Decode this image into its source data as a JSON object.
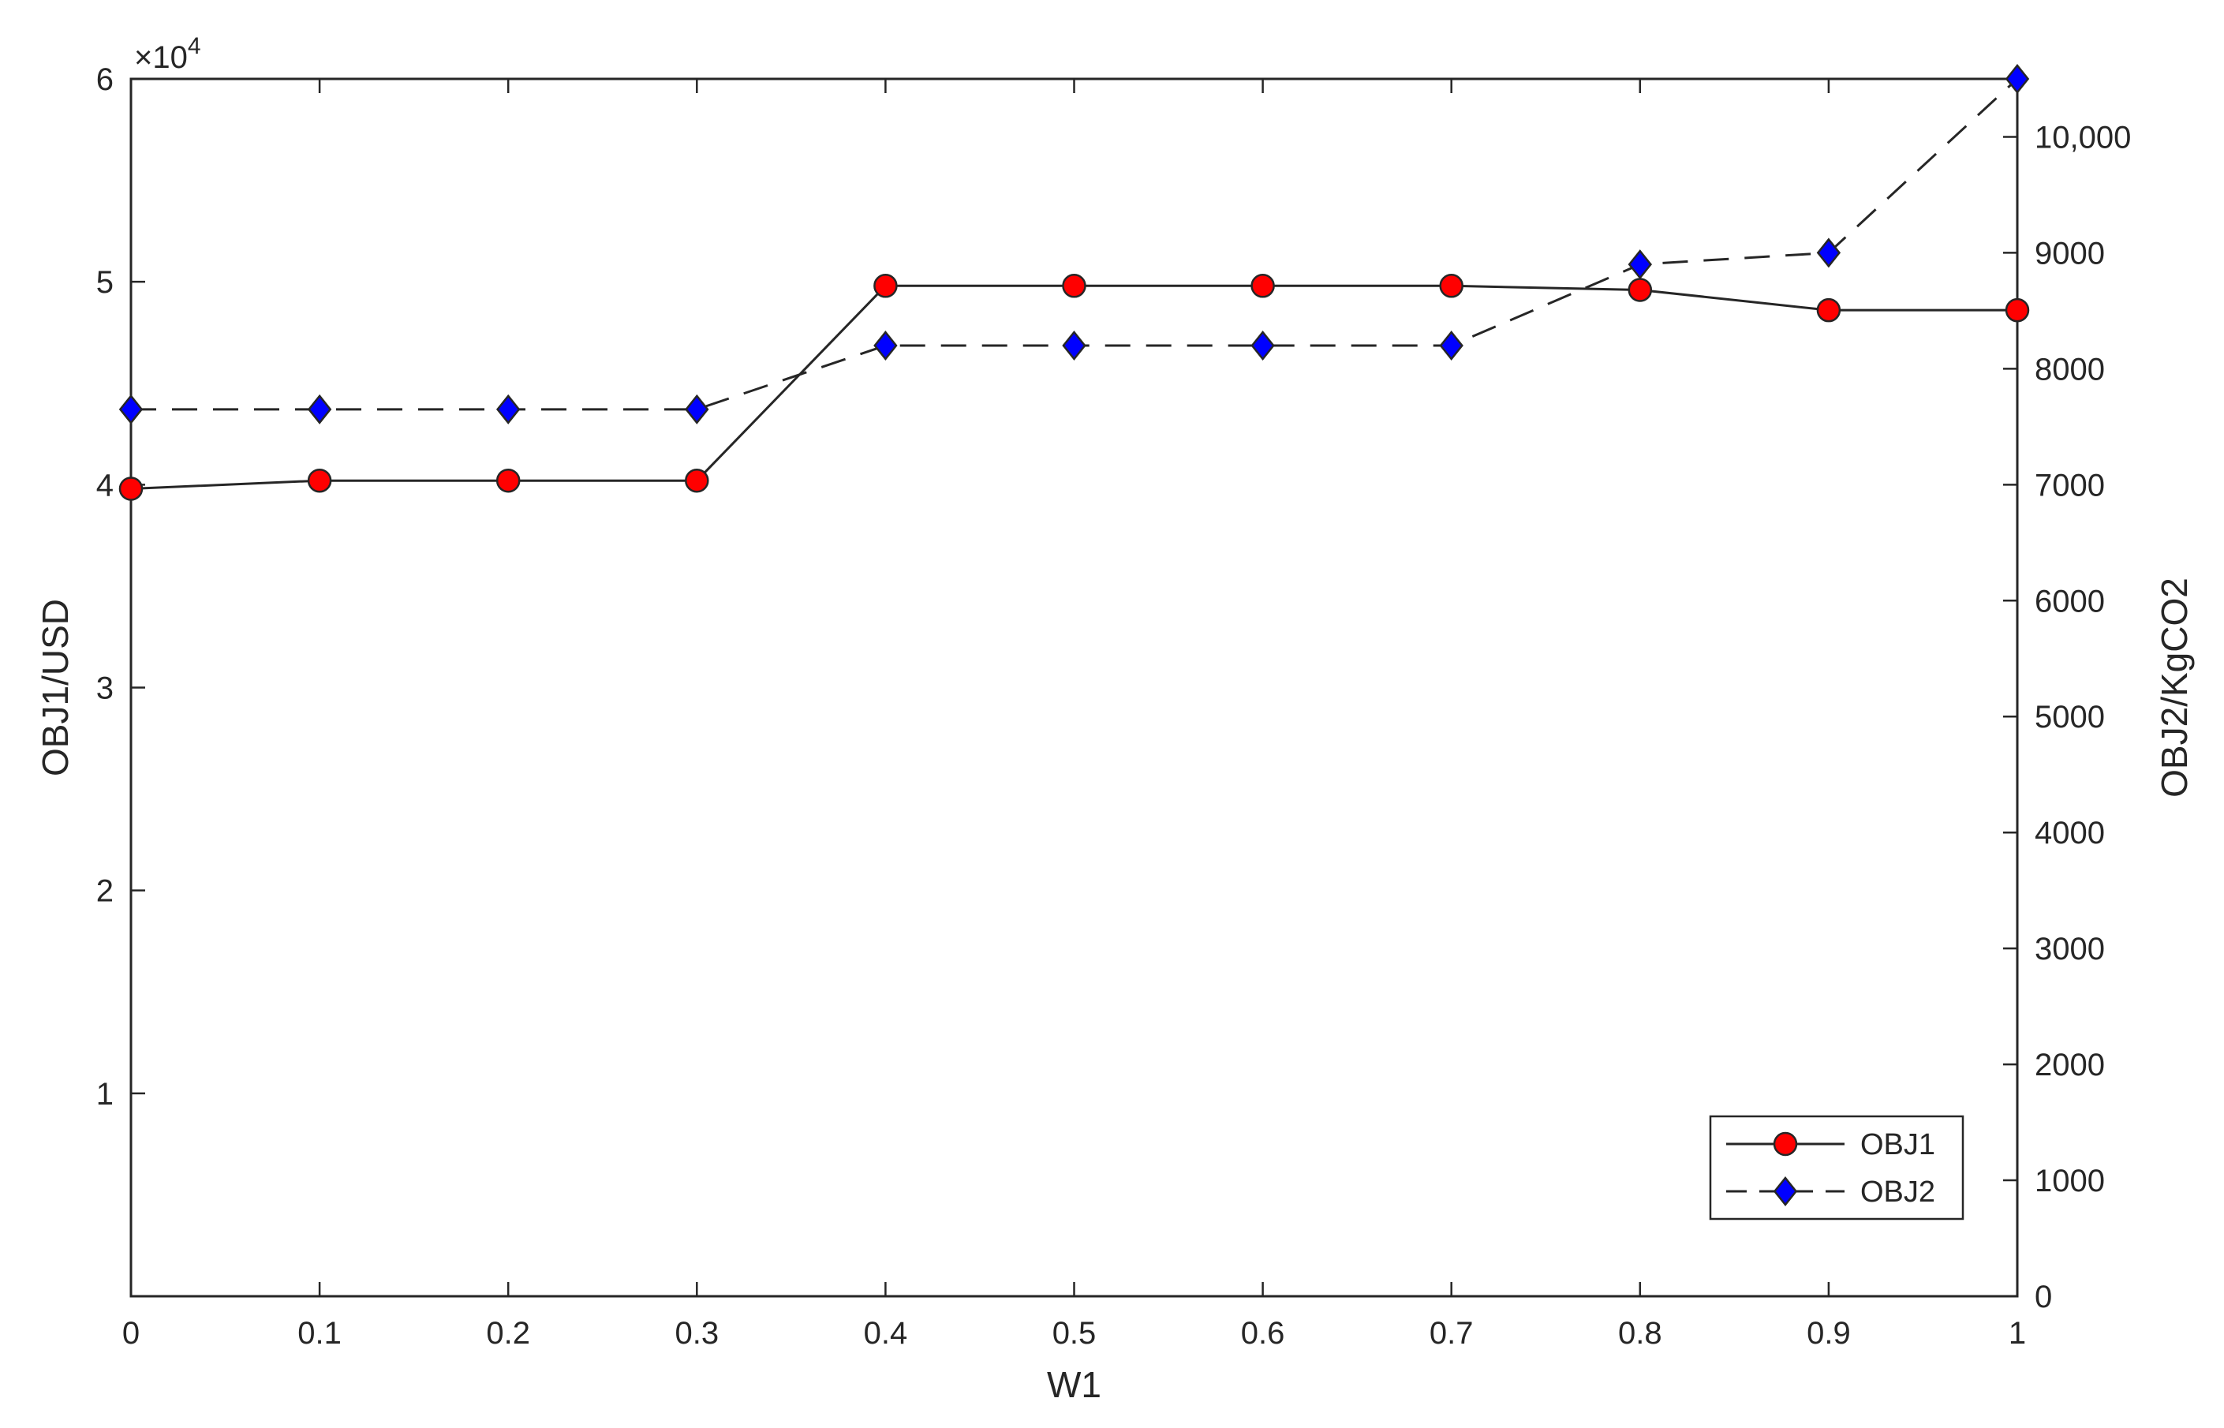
{
  "chart_data": {
    "type": "line",
    "title": "",
    "xlabel": "W1",
    "ylabel_left": "OBJ1/USD",
    "ylabel_right": "OBJ2/KgCO2",
    "x": [
      0,
      0.1,
      0.2,
      0.3,
      0.4,
      0.5,
      0.6,
      0.7,
      0.8,
      0.9,
      1
    ],
    "x_ticks": [
      "0",
      "0.1",
      "0.2",
      "0.3",
      "0.4",
      "0.5",
      "0.6",
      "0.7",
      "0.8",
      "0.9",
      "1"
    ],
    "xlim": [
      0,
      1
    ],
    "left_axis": {
      "ylim": [
        0,
        6
      ],
      "ticks": [
        1,
        2,
        3,
        4,
        5,
        6
      ],
      "tick_labels": [
        "1",
        "2",
        "3",
        "4",
        "5",
        "6"
      ],
      "multiplier_base": "×10",
      "multiplier_exp": "4"
    },
    "right_axis": {
      "ylim": [
        0,
        10500
      ],
      "ticks": [
        0,
        1000,
        2000,
        3000,
        4000,
        5000,
        6000,
        7000,
        8000,
        9000,
        10000
      ],
      "tick_labels": [
        "0",
        "1000",
        "2000",
        "3000",
        "4000",
        "5000",
        "6000",
        "7000",
        "8000",
        "9000",
        "10,000"
      ]
    },
    "series": [
      {
        "name": "OBJ1",
        "axis": "left",
        "values": [
          3.98,
          4.02,
          4.02,
          4.02,
          4.98,
          4.98,
          4.98,
          4.98,
          4.96,
          4.86,
          4.86
        ],
        "line_style": "solid",
        "marker": "circle",
        "color": "#ff0000"
      },
      {
        "name": "OBJ2",
        "axis": "right",
        "values": [
          7650,
          7650,
          7650,
          7650,
          8200,
          8200,
          8200,
          8200,
          8900,
          9000,
          10500
        ],
        "line_style": "dashed",
        "marker": "diamond",
        "color": "#0000ff"
      }
    ],
    "legend_position": "bottom-right",
    "grid": false
  }
}
